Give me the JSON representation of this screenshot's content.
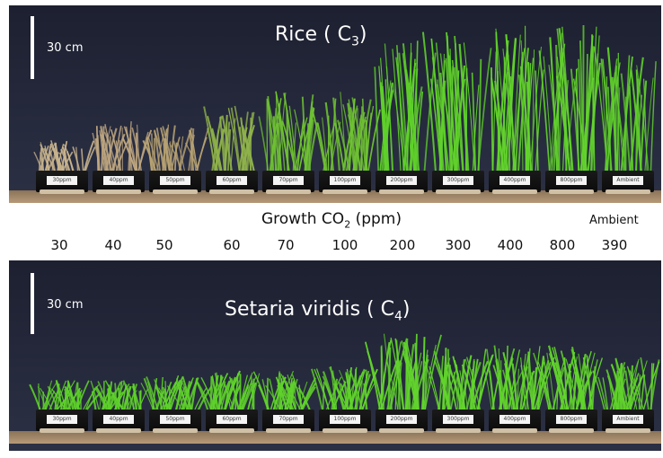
{
  "top_panel": {
    "scale_label": "30 cm",
    "title": "Rice ( C",
    "title_subscript": "3",
    "title_end": ")",
    "tray_labels": [
      "30ppm",
      "40ppm",
      "50ppm",
      "60ppm",
      "70ppm",
      "100ppm",
      "200ppm",
      "300ppm",
      "400ppm",
      "800ppm",
      "Ambient"
    ],
    "plant_heights": [
      0.22,
      0.35,
      0.33,
      0.45,
      0.55,
      0.55,
      0.9,
      0.95,
      1.0,
      1.0,
      0.85
    ],
    "plant_colors": [
      "#c9b48d",
      "#bea67f",
      "#b7a272",
      "#8fb24a",
      "#6fc232",
      "#6fc232",
      "#5fd12a",
      "#60d22b",
      "#63d42c",
      "#63d42c",
      "#5ecc2a"
    ]
  },
  "bottom_panel": {
    "scale_label": "30 cm",
    "title": "Setaria viridis ( C",
    "title_subscript": "4",
    "title_end": ")",
    "tray_labels": [
      "30ppm",
      "40ppm",
      "50ppm",
      "60ppm",
      "70ppm",
      "100ppm",
      "200ppm",
      "300ppm",
      "400ppm",
      "800ppm",
      "Ambient"
    ],
    "plant_heights": [
      0.35,
      0.35,
      0.4,
      0.45,
      0.45,
      0.5,
      0.85,
      0.7,
      0.72,
      0.72,
      0.6
    ],
    "plant_colors": [
      "#5ed12a",
      "#5ed12a",
      "#5fd22b",
      "#5fd22b",
      "#60d32b",
      "#60d32b",
      "#62d52c",
      "#62d52c",
      "#62d52c",
      "#62d52c",
      "#60d22b"
    ]
  },
  "axis": {
    "title": "Growth CO",
    "title_subscript": "2",
    "title_end": " (ppm)",
    "ambient_word": "Ambient",
    "ticks": [
      "30",
      "40",
      "50",
      "60",
      "70",
      "100",
      "200",
      "300",
      "400",
      "800",
      "390"
    ]
  }
}
